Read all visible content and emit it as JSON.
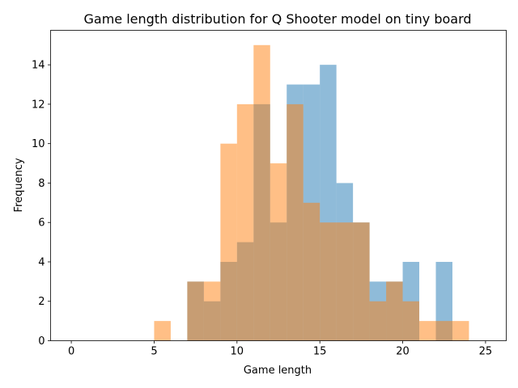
{
  "chart_data": {
    "type": "bar",
    "title": "Game length distribution for Q Shooter model on tiny board",
    "xlabel": "Game length",
    "ylabel": "Frequency",
    "xlim": [
      -1.25,
      26.25
    ],
    "ylim": [
      0,
      15.75
    ],
    "xticks": [
      0,
      5,
      10,
      15,
      20,
      25
    ],
    "yticks": [
      0,
      2,
      4,
      6,
      8,
      10,
      12,
      14
    ],
    "bin_width": 1,
    "grid": false,
    "legend": "none",
    "series": [
      {
        "color": "#1f77b4",
        "alpha": 0.5,
        "bins": [
          7,
          8,
          9,
          10,
          11,
          12,
          13,
          14,
          15,
          16,
          17,
          18,
          19,
          20,
          21,
          22
        ],
        "values": [
          3,
          2,
          4,
          5,
          12,
          6,
          13,
          13,
          14,
          8,
          6,
          3,
          3,
          4,
          0,
          4
        ]
      },
      {
        "color": "#ff7f0e",
        "alpha": 0.5,
        "bins": [
          5,
          6,
          7,
          8,
          9,
          10,
          11,
          12,
          13,
          14,
          15,
          16,
          17,
          18,
          19,
          20,
          21,
          22,
          23
        ],
        "values": [
          1,
          0,
          3,
          3,
          10,
          12,
          15,
          9,
          12,
          7,
          6,
          6,
          6,
          2,
          3,
          2,
          1,
          1,
          1
        ]
      }
    ]
  }
}
